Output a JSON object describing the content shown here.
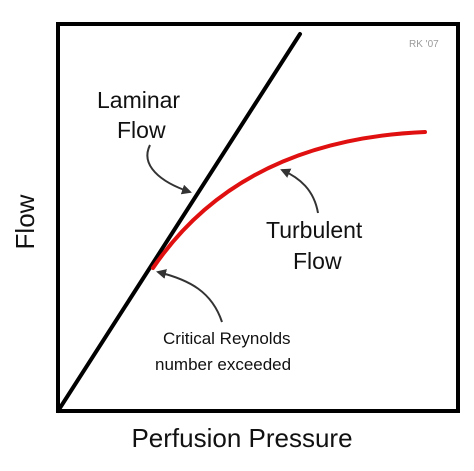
{
  "credit": "RK '07",
  "axes": {
    "x_label": "Perfusion Pressure",
    "y_label": "Flow"
  },
  "curves": {
    "laminar": {
      "line1": "Laminar",
      "line2": "Flow",
      "color": "#000000"
    },
    "turbulent": {
      "line1": "Turbulent",
      "line2": "Flow",
      "color": "#e01010"
    }
  },
  "annotation": {
    "line1": "Critical Reynolds",
    "line2": "number exceeded"
  }
}
